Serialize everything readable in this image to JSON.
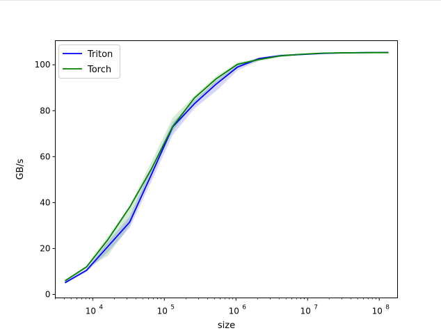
{
  "chart_data": {
    "type": "line",
    "xlabel": "size",
    "ylabel": "GB/s",
    "xscale": "log",
    "xlim": [
      3000,
      180000000
    ],
    "ylim": [
      -1.5,
      110.5
    ],
    "grid": false,
    "legend_position": "top-left",
    "x": [
      4096,
      8192,
      16384,
      32768,
      65536,
      131072,
      262144,
      524288,
      1048576,
      2097152,
      4194304,
      8388608,
      16777216,
      33554432,
      67108864,
      134217728
    ],
    "yticks": [
      0,
      20,
      40,
      60,
      80,
      100
    ],
    "ytick_labels": [
      "0",
      "20",
      "40",
      "60",
      "80",
      "100"
    ],
    "xticks": [
      {
        "label_base": "10",
        "label_exp": "4",
        "value": 10000
      },
      {
        "label_base": "10",
        "label_exp": "5",
        "value": 100000
      },
      {
        "label_base": "10",
        "label_exp": "6",
        "value": 1000000
      },
      {
        "label_base": "10",
        "label_exp": "7",
        "value": 10000000
      },
      {
        "label_base": "10",
        "label_exp": "8",
        "value": 100000000
      }
    ],
    "series": [
      {
        "name": "Triton",
        "color": "#0000ff",
        "values": [
          5.1,
          10.5,
          21.0,
          31.5,
          52.0,
          73.0,
          83.0,
          91.5,
          99.0,
          102.7,
          104.0,
          104.5,
          105.0,
          105.2,
          105.3,
          105.4
        ],
        "band_low": [
          4.6,
          9.8,
          18.5,
          29.0,
          49.0,
          69.5,
          81.0,
          88.5,
          97.5,
          102.0,
          103.5,
          104.3,
          104.8,
          105.0,
          105.1,
          105.2
        ],
        "band_high": [
          5.6,
          11.2,
          23.0,
          34.0,
          55.0,
          75.0,
          84.5,
          93.0,
          100.0,
          103.2,
          104.5,
          104.8,
          105.2,
          105.4,
          105.5,
          105.6
        ]
      },
      {
        "name": "Torch",
        "color": "#008000",
        "values": [
          5.9,
          12.0,
          24.0,
          38.0,
          54.5,
          73.2,
          85.5,
          93.8,
          100.2,
          102.3,
          103.9,
          104.6,
          105.1,
          105.2,
          105.3,
          105.3
        ],
        "band_low": [
          5.4,
          11.3,
          17.0,
          30.0,
          52.0,
          71.0,
          83.5,
          92.0,
          99.0,
          101.5,
          103.5,
          104.3,
          104.9,
          105.0,
          105.1,
          105.1
        ],
        "band_high": [
          6.4,
          12.6,
          25.5,
          38.5,
          57.5,
          77.0,
          86.5,
          95.0,
          101.0,
          102.8,
          104.3,
          104.9,
          105.3,
          105.4,
          105.5,
          105.5
        ]
      }
    ]
  }
}
